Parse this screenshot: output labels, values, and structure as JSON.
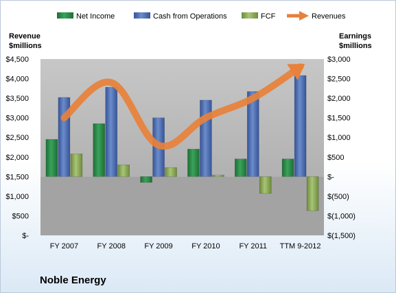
{
  "chart_data": {
    "type": "bar",
    "title": "Noble Energy",
    "categories": [
      "FY 2007",
      "FY 2008",
      "FY 2009",
      "FY 2010",
      "FY 2011",
      "TTM 9-2012"
    ],
    "left_axis": {
      "label_line1": "Revenue",
      "label_line2": "$millions",
      "range": [
        0,
        4500
      ],
      "ticks": [
        {
          "value": 0,
          "label": "$-"
        },
        {
          "value": 500,
          "label": "$500"
        },
        {
          "value": 1000,
          "label": "$1,000"
        },
        {
          "value": 1500,
          "label": "$1,500"
        },
        {
          "value": 2000,
          "label": "$2,000"
        },
        {
          "value": 2500,
          "label": "$2,500"
        },
        {
          "value": 3000,
          "label": "$3,000"
        },
        {
          "value": 3500,
          "label": "$3,500"
        },
        {
          "value": 4000,
          "label": "$4,000"
        },
        {
          "value": 4500,
          "label": "$4,500"
        }
      ]
    },
    "right_axis": {
      "label_line1": "Earnings",
      "label_line2": "$millions",
      "range": [
        -1500,
        3000
      ],
      "ticks": [
        {
          "value": -1500,
          "label": "$(1,500)"
        },
        {
          "value": -1000,
          "label": "$(1,000)"
        },
        {
          "value": -500,
          "label": "$(500)"
        },
        {
          "value": 0,
          "label": "$-"
        },
        {
          "value": 500,
          "label": "$500"
        },
        {
          "value": 1000,
          "label": "$1,000"
        },
        {
          "value": 1500,
          "label": "$1,500"
        },
        {
          "value": 2000,
          "label": "$2,000"
        },
        {
          "value": 2500,
          "label": "$2,500"
        },
        {
          "value": 3000,
          "label": "$3,000"
        }
      ]
    },
    "bar_series": [
      {
        "name": "Net Income",
        "axis": "right",
        "color": "#2e8b4a",
        "values": [
          950,
          1350,
          -150,
          700,
          450,
          450
        ]
      },
      {
        "name": "Cash from Operations",
        "axis": "right",
        "color": "#4f6fb0",
        "values": [
          2020,
          2280,
          1500,
          1950,
          2170,
          2580
        ]
      },
      {
        "name": "FCF",
        "axis": "right",
        "color": "#8fad5a",
        "values": [
          580,
          300,
          230,
          40,
          -430,
          -870
        ]
      }
    ],
    "line_series": {
      "name": "Revenues",
      "axis": "left",
      "color": "#e8813a",
      "values": [
        3000,
        3900,
        2300,
        3000,
        3500,
        4300
      ]
    },
    "legend_position": "top",
    "grid": false
  }
}
